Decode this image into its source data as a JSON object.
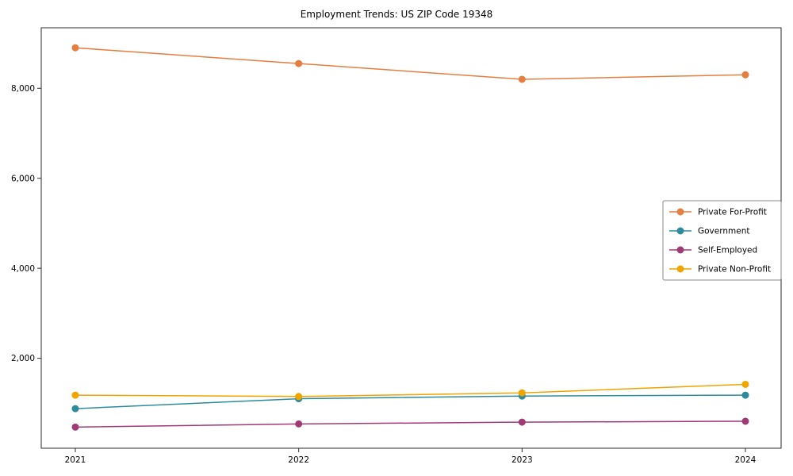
{
  "chart_data": {
    "type": "line",
    "title": "Employment Trends: US ZIP Code 19348",
    "x": [
      2021,
      2022,
      2023,
      2024
    ],
    "xtick_labels": [
      "2021",
      "2022",
      "2023",
      "2024"
    ],
    "yticks": [
      2000,
      4000,
      6000,
      8000
    ],
    "ytick_labels": [
      "2,000",
      "4,000",
      "6,000",
      "8,000"
    ],
    "ylim": [
      0,
      9345
    ],
    "grid": false,
    "legend_position": "center-right",
    "series": [
      {
        "name": "Private For-Profit",
        "color": "#E57E41",
        "values": [
          8900,
          8550,
          8200,
          8300
        ]
      },
      {
        "name": "Government",
        "color": "#2E8B9C",
        "values": [
          880,
          1100,
          1160,
          1180
        ]
      },
      {
        "name": "Self-Employed",
        "color": "#A03A75",
        "values": [
          470,
          540,
          580,
          600
        ]
      },
      {
        "name": "Private Non-Profit",
        "color": "#EFA400",
        "values": [
          1180,
          1150,
          1230,
          1420
        ]
      }
    ],
    "axis_color": "#2b2b2b",
    "text_color": "#000000",
    "legend_border_color": "#8a8a8a"
  }
}
